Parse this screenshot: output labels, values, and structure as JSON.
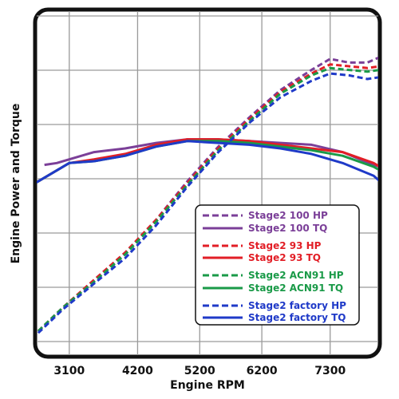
{
  "chart_data": {
    "type": "line",
    "title": "",
    "xlabel": "Engine RPM",
    "ylabel": "Engine Power and Torque",
    "xlim": [
      2550,
      8100
    ],
    "x_ticks": [
      3100,
      4200,
      5200,
      6200,
      7300
    ],
    "x_tick_labels": [
      "3100",
      "4200",
      "5200",
      "6200",
      "7300"
    ],
    "y_tick_labels": [],
    "grid": true,
    "legend_position": "bottom-right",
    "series": [
      {
        "name": "Stage2 100 HP",
        "color": "#7b3f98",
        "dash": "dashed",
        "x": [
          2600,
          3000,
          3500,
          4000,
          4500,
          5000,
          5500,
          6000,
          6500,
          7000,
          7300,
          7600,
          7900,
          8100
        ],
        "y": [
          14,
          27,
          42,
          57,
          75,
          96,
          115,
          131,
          146,
          157,
          163,
          161,
          161,
          164
        ]
      },
      {
        "name": "Stage2 100 TQ",
        "color": "#7b3f98",
        "dash": "solid",
        "x": [
          2700,
          2900,
          3100,
          3500,
          4000,
          4500,
          5000,
          5500,
          6000,
          6500,
          7000,
          7500,
          8000,
          8100
        ],
        "y": [
          105,
          106,
          108,
          112,
          114,
          117,
          119,
          119,
          118,
          117,
          116,
          112,
          105,
          104
        ]
      },
      {
        "name": "Stage2 93 HP",
        "color": "#e21e26",
        "dash": "dashed",
        "x": [
          2600,
          3000,
          3500,
          4000,
          4500,
          5000,
          5500,
          6000,
          6500,
          7000,
          7300,
          7600,
          7900,
          8100
        ],
        "y": [
          14,
          27,
          42,
          57,
          75,
          95,
          114,
          130,
          145,
          155,
          160,
          159,
          158,
          159
        ]
      },
      {
        "name": "Stage2 93 TQ",
        "color": "#e21e26",
        "dash": "solid",
        "x": [
          2550,
          2800,
          3100,
          3500,
          4000,
          4500,
          5000,
          5500,
          6000,
          6500,
          7000,
          7500,
          8000,
          8100
        ],
        "y": [
          95,
          100,
          106,
          108,
          111,
          116,
          119,
          119,
          118,
          116,
          114,
          112,
          106,
          104
        ]
      },
      {
        "name": "Stage2 ACN91 HP",
        "color": "#1a9a48",
        "dash": "dashed",
        "x": [
          2600,
          3000,
          3500,
          4000,
          4500,
          5000,
          5500,
          6000,
          6500,
          7000,
          7300,
          7600,
          7900,
          8100
        ],
        "y": [
          14,
          27,
          41,
          56,
          74,
          94,
          113,
          129,
          144,
          154,
          158,
          157,
          156,
          157
        ]
      },
      {
        "name": "Stage2 ACN91 TQ",
        "color": "#1a9a48",
        "dash": "solid",
        "x": [
          2550,
          2800,
          3100,
          3500,
          4000,
          4500,
          5000,
          5500,
          6000,
          6500,
          7000,
          7500,
          8000,
          8100
        ],
        "y": [
          95,
          100,
          106,
          107,
          110,
          115,
          118,
          118,
          117,
          115,
          113,
          110,
          104,
          102
        ]
      },
      {
        "name": "Stage2 factory HP",
        "color": "#1f3ac8",
        "dash": "dashed",
        "x": [
          2600,
          3000,
          3500,
          4000,
          4500,
          5000,
          5500,
          6000,
          6500,
          7000,
          7300,
          7600,
          7900,
          8100
        ],
        "y": [
          13,
          26,
          40,
          54,
          72,
          93,
          112,
          128,
          142,
          151,
          155,
          154,
          152,
          153
        ]
      },
      {
        "name": "Stage2 factory TQ",
        "color": "#1f3ac8",
        "dash": "solid",
        "x": [
          2550,
          2800,
          3100,
          3500,
          4000,
          4500,
          5000,
          5500,
          6000,
          6500,
          7000,
          7500,
          8000,
          8100
        ],
        "y": [
          95,
          100,
          106,
          107,
          110,
          115,
          118,
          117,
          116,
          114,
          111,
          106,
          99,
          96
        ]
      }
    ]
  }
}
